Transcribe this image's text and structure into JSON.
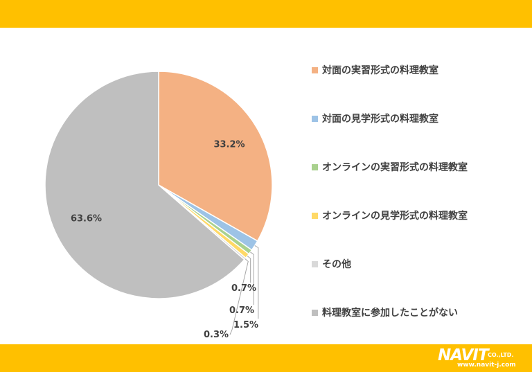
{
  "chart_data": {
    "type": "pie",
    "categories": [
      "対面の実習形式の料理教室",
      "対面の見学形式の料理教室",
      "オンラインの実習形式の料理教室",
      "オンラインの見学形式の料理教室",
      "その他",
      "料理教室に参加したことがない"
    ],
    "values": [
      33.2,
      1.5,
      0.7,
      0.7,
      0.3,
      63.6
    ],
    "data_labels": [
      "33.2%",
      "1.5%",
      "0.7%",
      "0.7%",
      "0.3%",
      "63.6%"
    ],
    "colors": [
      "#F4B183",
      "#9DC3E6",
      "#A9D18E",
      "#FFD966",
      "#D9D9D9",
      "#BFBFBF"
    ],
    "legend_position": "right"
  },
  "brand": {
    "logo_text": "NAVIT",
    "logo_suffix": "CO.,LTD.",
    "url": "www.navit-j.com"
  }
}
